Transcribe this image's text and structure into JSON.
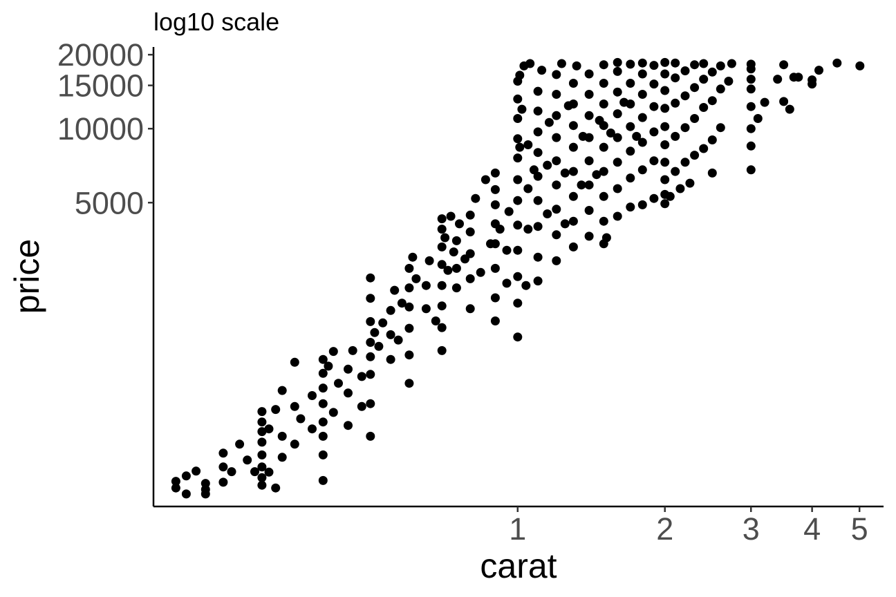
{
  "chart_data": {
    "type": "scatter",
    "title": "log10 scale",
    "xlabel": "carat",
    "ylabel": "price",
    "x_scale": "log10",
    "y_scale": "log10",
    "xlim": [
      0.18,
      5.6
    ],
    "ylim": [
      290,
      21500
    ],
    "x_ticks": [
      1,
      2,
      3,
      4,
      5
    ],
    "x_tick_labels": [
      "1",
      "2",
      "3",
      "4",
      "5"
    ],
    "y_ticks": [
      5000,
      10000,
      15000,
      20000
    ],
    "y_tick_labels": [
      "5000",
      "10000",
      "15000",
      "20000"
    ],
    "grid": false,
    "legend": "none",
    "point_color": "#000000",
    "series": [
      {
        "points": [
          [
            0.2,
            345
          ],
          [
            0.2,
            367
          ],
          [
            0.21,
            326
          ],
          [
            0.21,
            386
          ],
          [
            0.22,
            404
          ],
          [
            0.23,
            326
          ],
          [
            0.23,
            340
          ],
          [
            0.23,
            360
          ],
          [
            0.25,
            364
          ],
          [
            0.25,
            420
          ],
          [
            0.25,
            478
          ],
          [
            0.26,
            402
          ],
          [
            0.27,
            520
          ],
          [
            0.28,
            448
          ],
          [
            0.29,
            402
          ],
          [
            0.3,
            354
          ],
          [
            0.3,
            380
          ],
          [
            0.3,
            420
          ],
          [
            0.3,
            470
          ],
          [
            0.3,
            530
          ],
          [
            0.3,
            585
          ],
          [
            0.3,
            640
          ],
          [
            0.3,
            706
          ],
          [
            0.31,
            400
          ],
          [
            0.31,
            600
          ],
          [
            0.32,
            720
          ],
          [
            0.32,
            345
          ],
          [
            0.33,
            460
          ],
          [
            0.33,
            560
          ],
          [
            0.33,
            860
          ],
          [
            0.35,
            520
          ],
          [
            0.35,
            740
          ],
          [
            0.35,
            1120
          ],
          [
            0.36,
            660
          ],
          [
            0.38,
            600
          ],
          [
            0.38,
            820
          ],
          [
            0.4,
            370
          ],
          [
            0.4,
            470
          ],
          [
            0.4,
            560
          ],
          [
            0.4,
            640
          ],
          [
            0.4,
            760
          ],
          [
            0.4,
            880
          ],
          [
            0.4,
            1010
          ],
          [
            0.4,
            1150
          ],
          [
            0.41,
            1080
          ],
          [
            0.42,
            700
          ],
          [
            0.42,
            1240
          ],
          [
            0.43,
            920
          ],
          [
            0.45,
            620
          ],
          [
            0.45,
            840
          ],
          [
            0.45,
            1050
          ],
          [
            0.46,
            1250
          ],
          [
            0.48,
            740
          ],
          [
            0.48,
            980
          ],
          [
            0.5,
            560
          ],
          [
            0.5,
            760
          ],
          [
            0.5,
            1000
          ],
          [
            0.5,
            1180
          ],
          [
            0.5,
            1350
          ],
          [
            0.5,
            1640
          ],
          [
            0.5,
            2040
          ],
          [
            0.5,
            2470
          ],
          [
            0.51,
            1480
          ],
          [
            0.52,
            1300
          ],
          [
            0.53,
            1620
          ],
          [
            0.55,
            1150
          ],
          [
            0.55,
            1450
          ],
          [
            0.55,
            1820
          ],
          [
            0.56,
            2200
          ],
          [
            0.57,
            1380
          ],
          [
            0.58,
            1950
          ],
          [
            0.6,
            920
          ],
          [
            0.6,
            1200
          ],
          [
            0.6,
            1540
          ],
          [
            0.6,
            1880
          ],
          [
            0.6,
            2250
          ],
          [
            0.6,
            2700
          ],
          [
            0.61,
            3000
          ],
          [
            0.62,
            2450
          ],
          [
            0.65,
            1850
          ],
          [
            0.65,
            2300
          ],
          [
            0.66,
            2900
          ],
          [
            0.68,
            1650
          ],
          [
            0.7,
            1250
          ],
          [
            0.7,
            1550
          ],
          [
            0.7,
            1900
          ],
          [
            0.7,
            2300
          ],
          [
            0.7,
            2800
          ],
          [
            0.7,
            3300
          ],
          [
            0.7,
            3900
          ],
          [
            0.7,
            4300
          ],
          [
            0.71,
            3600
          ],
          [
            0.72,
            2650
          ],
          [
            0.73,
            4400
          ],
          [
            0.74,
            3150
          ],
          [
            0.75,
            2250
          ],
          [
            0.75,
            2700
          ],
          [
            0.75,
            3500
          ],
          [
            0.76,
            4100
          ],
          [
            0.78,
            2950
          ],
          [
            0.8,
            1850
          ],
          [
            0.8,
            2450
          ],
          [
            0.8,
            3100
          ],
          [
            0.8,
            3800
          ],
          [
            0.8,
            4450
          ],
          [
            0.82,
            5200
          ],
          [
            0.84,
            2600
          ],
          [
            0.86,
            6200
          ],
          [
            0.88,
            3400
          ],
          [
            0.9,
            1650
          ],
          [
            0.9,
            2050
          ],
          [
            0.9,
            2700
          ],
          [
            0.9,
            3400
          ],
          [
            0.9,
            4100
          ],
          [
            0.9,
            4900
          ],
          [
            0.9,
            5650
          ],
          [
            0.9,
            6600
          ],
          [
            0.92,
            3900
          ],
          [
            0.95,
            2350
          ],
          [
            0.95,
            3200
          ],
          [
            0.96,
            4600
          ],
          [
            1.0,
            1420
          ],
          [
            1.0,
            1950
          ],
          [
            1.0,
            2500
          ],
          [
            1.0,
            3200
          ],
          [
            1.0,
            4050
          ],
          [
            1.0,
            5100
          ],
          [
            1.0,
            6200
          ],
          [
            1.0,
            7600
          ],
          [
            1.0,
            9100
          ],
          [
            1.0,
            11000
          ],
          [
            1.0,
            13200
          ],
          [
            1.0,
            15600
          ],
          [
            1.01,
            8400
          ],
          [
            1.01,
            16500
          ],
          [
            1.02,
            12000
          ],
          [
            1.03,
            18000
          ],
          [
            1.04,
            2300
          ],
          [
            1.05,
            3900
          ],
          [
            1.05,
            5700
          ],
          [
            1.05,
            8600
          ],
          [
            1.06,
            18400
          ],
          [
            1.08,
            6800
          ],
          [
            1.1,
            2400
          ],
          [
            1.1,
            3000
          ],
          [
            1.1,
            4000
          ],
          [
            1.1,
            5100
          ],
          [
            1.1,
            6400
          ],
          [
            1.1,
            8000
          ],
          [
            1.1,
            9700
          ],
          [
            1.1,
            11800
          ],
          [
            1.1,
            14200
          ],
          [
            1.12,
            17300
          ],
          [
            1.15,
            4500
          ],
          [
            1.15,
            7100
          ],
          [
            1.16,
            10600
          ],
          [
            1.2,
            2900
          ],
          [
            1.2,
            3700
          ],
          [
            1.2,
            4700
          ],
          [
            1.2,
            5900
          ],
          [
            1.2,
            7400
          ],
          [
            1.2,
            9200
          ],
          [
            1.2,
            11300
          ],
          [
            1.2,
            13800
          ],
          [
            1.2,
            16600
          ],
          [
            1.23,
            18400
          ],
          [
            1.25,
            4100
          ],
          [
            1.25,
            6600
          ],
          [
            1.27,
            12400
          ],
          [
            1.3,
            3300
          ],
          [
            1.3,
            4200
          ],
          [
            1.3,
            5300
          ],
          [
            1.3,
            6700
          ],
          [
            1.3,
            8400
          ],
          [
            1.3,
            10300
          ],
          [
            1.3,
            12600
          ],
          [
            1.3,
            15300
          ],
          [
            1.32,
            18000
          ],
          [
            1.35,
            5900
          ],
          [
            1.36,
            9300
          ],
          [
            1.4,
            3650
          ],
          [
            1.4,
            4650
          ],
          [
            1.4,
            5900
          ],
          [
            1.4,
            7400
          ],
          [
            1.4,
            9200
          ],
          [
            1.4,
            11300
          ],
          [
            1.4,
            13800
          ],
          [
            1.4,
            16700
          ],
          [
            1.45,
            6500
          ],
          [
            1.47,
            10800
          ],
          [
            1.5,
            3400
          ],
          [
            1.5,
            4200
          ],
          [
            1.5,
            5300
          ],
          [
            1.5,
            6700
          ],
          [
            1.5,
            8400
          ],
          [
            1.5,
            10300
          ],
          [
            1.5,
            12600
          ],
          [
            1.5,
            15300
          ],
          [
            1.5,
            18200
          ],
          [
            1.52,
            3600
          ],
          [
            1.55,
            9600
          ],
          [
            1.6,
            4400
          ],
          [
            1.6,
            5700
          ],
          [
            1.6,
            7300
          ],
          [
            1.6,
            9200
          ],
          [
            1.6,
            11500
          ],
          [
            1.6,
            14100
          ],
          [
            1.6,
            17100
          ],
          [
            1.6,
            18600
          ],
          [
            1.65,
            12800
          ],
          [
            1.7,
            4800
          ],
          [
            1.7,
            6300
          ],
          [
            1.7,
            8100
          ],
          [
            1.7,
            10200
          ],
          [
            1.7,
            12600
          ],
          [
            1.7,
            15300
          ],
          [
            1.7,
            18300
          ],
          [
            1.75,
            9300
          ],
          [
            1.8,
            4900
          ],
          [
            1.8,
            6800
          ],
          [
            1.8,
            8800
          ],
          [
            1.8,
            11100
          ],
          [
            1.8,
            13800
          ],
          [
            1.8,
            16700
          ],
          [
            1.8,
            18500
          ],
          [
            1.9,
            5200
          ],
          [
            1.9,
            7400
          ],
          [
            1.9,
            9700
          ],
          [
            1.9,
            12300
          ],
          [
            1.9,
            15200
          ],
          [
            1.9,
            18100
          ],
          [
            2.0,
            4950
          ],
          [
            2.0,
            5400
          ],
          [
            2.0,
            6200
          ],
          [
            2.0,
            7300
          ],
          [
            2.0,
            8600
          ],
          [
            2.0,
            10200
          ],
          [
            2.0,
            12100
          ],
          [
            2.0,
            14300
          ],
          [
            2.0,
            16700
          ],
          [
            2.0,
            18600
          ],
          [
            2.05,
            5300
          ],
          [
            2.1,
            6700
          ],
          [
            2.1,
            9300
          ],
          [
            2.1,
            12700
          ],
          [
            2.1,
            16100
          ],
          [
            2.1,
            18500
          ],
          [
            2.15,
            5700
          ],
          [
            2.2,
            7300
          ],
          [
            2.2,
            10100
          ],
          [
            2.2,
            13600
          ],
          [
            2.2,
            17200
          ],
          [
            2.25,
            6000
          ],
          [
            2.3,
            7800
          ],
          [
            2.3,
            11000
          ],
          [
            2.3,
            14700
          ],
          [
            2.3,
            18200
          ],
          [
            2.4,
            8300
          ],
          [
            2.4,
            12200
          ],
          [
            2.4,
            15900
          ],
          [
            2.4,
            18400
          ],
          [
            2.5,
            6600
          ],
          [
            2.5,
            9000
          ],
          [
            2.5,
            13000
          ],
          [
            2.5,
            17000
          ],
          [
            2.6,
            10100
          ],
          [
            2.6,
            14500
          ],
          [
            2.6,
            18000
          ],
          [
            2.7,
            15600
          ],
          [
            2.74,
            18400
          ],
          [
            3.0,
            6800
          ],
          [
            3.0,
            8500
          ],
          [
            3.0,
            10000
          ],
          [
            3.0,
            12300
          ],
          [
            3.0,
            14500
          ],
          [
            3.0,
            15900
          ],
          [
            3.0,
            17500
          ],
          [
            3.0,
            18300
          ],
          [
            3.1,
            11000
          ],
          [
            3.2,
            12800
          ],
          [
            3.4,
            15900
          ],
          [
            3.5,
            12900
          ],
          [
            3.5,
            18200
          ],
          [
            3.6,
            12000
          ],
          [
            3.67,
            16200
          ],
          [
            3.75,
            16200
          ],
          [
            4.0,
            15200
          ],
          [
            4.0,
            15800
          ],
          [
            4.13,
            17300
          ],
          [
            4.5,
            18500
          ],
          [
            5.01,
            18000
          ]
        ]
      }
    ]
  }
}
